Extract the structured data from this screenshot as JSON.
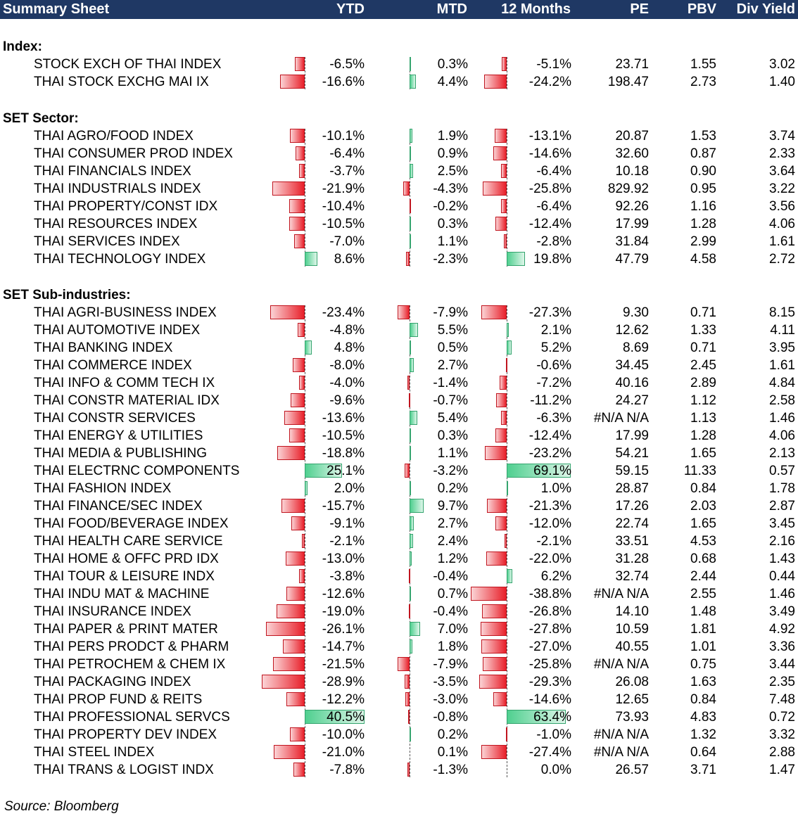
{
  "header": {
    "title": "Summary Sheet",
    "columns": [
      "YTD",
      "MTD",
      "12 Months",
      "PE",
      "PBV",
      "Div Yield"
    ]
  },
  "colors": {
    "header_bg": "#1f3864",
    "negative": "#e8202a",
    "positive": "#4fcf8f"
  },
  "sections": [
    {
      "title": "Index:",
      "rows": [
        {
          "name": "STOCK EXCH OF THAI INDEX",
          "ytd": -6.5,
          "mtd": 0.3,
          "m12": -5.1,
          "pe": "23.71",
          "pbv": "1.55",
          "dy": "3.02"
        },
        {
          "name": "THAI STOCK EXCHG MAI IX",
          "ytd": -16.6,
          "mtd": 4.4,
          "m12": -24.2,
          "pe": "198.47",
          "pbv": "2.73",
          "dy": "1.40"
        }
      ]
    },
    {
      "title": "SET Sector:",
      "rows": [
        {
          "name": "THAI AGRO/FOOD INDEX",
          "ytd": -10.1,
          "mtd": 1.9,
          "m12": -13.1,
          "pe": "20.87",
          "pbv": "1.53",
          "dy": "3.74"
        },
        {
          "name": "THAI CONSUMER PROD INDEX",
          "ytd": -6.4,
          "mtd": 0.9,
          "m12": -14.6,
          "pe": "32.60",
          "pbv": "0.87",
          "dy": "2.33"
        },
        {
          "name": "THAI FINANCIALS INDEX",
          "ytd": -3.7,
          "mtd": 2.5,
          "m12": -6.4,
          "pe": "10.18",
          "pbv": "0.90",
          "dy": "3.64"
        },
        {
          "name": "THAI INDUSTRIALS INDEX",
          "ytd": -21.9,
          "mtd": -4.3,
          "m12": -25.8,
          "pe": "829.92",
          "pbv": "0.95",
          "dy": "3.22"
        },
        {
          "name": "THAI PROPERTY/CONST IDX",
          "ytd": -10.4,
          "mtd": -0.2,
          "m12": -6.4,
          "pe": "92.26",
          "pbv": "1.16",
          "dy": "3.56"
        },
        {
          "name": "THAI RESOURCES INDEX",
          "ytd": -10.5,
          "mtd": 0.3,
          "m12": -12.4,
          "pe": "17.99",
          "pbv": "1.28",
          "dy": "4.06"
        },
        {
          "name": "THAI SERVICES INDEX",
          "ytd": -7.0,
          "mtd": 1.1,
          "m12": -2.8,
          "pe": "31.84",
          "pbv": "2.99",
          "dy": "1.61"
        },
        {
          "name": "THAI TECHNOLOGY INDEX",
          "ytd": 8.6,
          "mtd": -2.3,
          "m12": 19.8,
          "pe": "47.79",
          "pbv": "4.58",
          "dy": "2.72"
        }
      ]
    },
    {
      "title": "SET Sub-industries:",
      "rows": [
        {
          "name": "THAI AGRI-BUSINESS INDEX",
          "ytd": -23.4,
          "mtd": -7.9,
          "m12": -27.3,
          "pe": "9.30",
          "pbv": "0.71",
          "dy": "8.15"
        },
        {
          "name": "THAI AUTOMOTIVE INDEX",
          "ytd": -4.8,
          "mtd": 5.5,
          "m12": 2.1,
          "pe": "12.62",
          "pbv": "1.33",
          "dy": "4.11"
        },
        {
          "name": "THAI BANKING INDEX",
          "ytd": 4.8,
          "mtd": 0.5,
          "m12": 5.2,
          "pe": "8.69",
          "pbv": "0.71",
          "dy": "3.95"
        },
        {
          "name": "THAI COMMERCE INDEX",
          "ytd": -8.0,
          "mtd": 2.7,
          "m12": -0.6,
          "pe": "34.45",
          "pbv": "2.45",
          "dy": "1.61"
        },
        {
          "name": "THAI INFO & COMM TECH IX",
          "ytd": -4.0,
          "mtd": -1.4,
          "m12": -7.2,
          "pe": "40.16",
          "pbv": "2.89",
          "dy": "4.84"
        },
        {
          "name": "THAI CONSTR MATERIAL IDX",
          "ytd": -9.6,
          "mtd": -0.7,
          "m12": -11.2,
          "pe": "24.27",
          "pbv": "1.12",
          "dy": "2.58"
        },
        {
          "name": "THAI CONSTR SERVICES",
          "ytd": -13.6,
          "mtd": 5.4,
          "m12": -6.3,
          "pe": "#N/A N/A",
          "pbv": "1.13",
          "dy": "1.46"
        },
        {
          "name": "THAI ENERGY & UTILITIES",
          "ytd": -10.5,
          "mtd": 0.3,
          "m12": -12.4,
          "pe": "17.99",
          "pbv": "1.28",
          "dy": "4.06"
        },
        {
          "name": "THAI MEDIA & PUBLISHING",
          "ytd": -18.8,
          "mtd": 1.1,
          "m12": -23.2,
          "pe": "54.21",
          "pbv": "1.65",
          "dy": "2.13"
        },
        {
          "name": "THAI ELECTRNC COMPONENTS",
          "ytd": 25.1,
          "mtd": -3.2,
          "m12": 69.1,
          "pe": "59.15",
          "pbv": "11.33",
          "dy": "0.57"
        },
        {
          "name": "THAI FASHION INDEX",
          "ytd": 2.0,
          "mtd": 0.2,
          "m12": 1.0,
          "pe": "28.87",
          "pbv": "0.84",
          "dy": "1.78"
        },
        {
          "name": "THAI FINANCE/SEC INDEX",
          "ytd": -15.7,
          "mtd": 9.7,
          "m12": -21.3,
          "pe": "17.26",
          "pbv": "2.03",
          "dy": "2.87"
        },
        {
          "name": "THAI FOOD/BEVERAGE INDEX",
          "ytd": -9.1,
          "mtd": 2.7,
          "m12": -12.0,
          "pe": "22.74",
          "pbv": "1.65",
          "dy": "3.45"
        },
        {
          "name": "THAI HEALTH CARE SERVICE",
          "ytd": -2.1,
          "mtd": 2.4,
          "m12": -2.1,
          "pe": "33.51",
          "pbv": "4.53",
          "dy": "2.16"
        },
        {
          "name": "THAI HOME & OFFC PRD IDX",
          "ytd": -13.0,
          "mtd": 1.2,
          "m12": -22.0,
          "pe": "31.28",
          "pbv": "0.68",
          "dy": "1.43"
        },
        {
          "name": "THAI TOUR & LEISURE INDX",
          "ytd": -3.8,
          "mtd": -0.4,
          "m12": 6.2,
          "pe": "32.74",
          "pbv": "2.44",
          "dy": "0.44"
        },
        {
          "name": "THAI INDU MAT & MACHINE",
          "ytd": -12.6,
          "mtd": 0.7,
          "m12": -38.8,
          "pe": "#N/A N/A",
          "pbv": "2.55",
          "dy": "1.46"
        },
        {
          "name": "THAI INSURANCE INDEX",
          "ytd": -19.0,
          "mtd": -0.4,
          "m12": -26.8,
          "pe": "14.10",
          "pbv": "1.48",
          "dy": "3.49"
        },
        {
          "name": "THAI PAPER & PRINT MATER",
          "ytd": -26.1,
          "mtd": 7.0,
          "m12": -27.8,
          "pe": "10.59",
          "pbv": "1.81",
          "dy": "4.92"
        },
        {
          "name": "THAI PERS PRODCT & PHARM",
          "ytd": -14.7,
          "mtd": 1.8,
          "m12": -27.0,
          "pe": "40.55",
          "pbv": "1.01",
          "dy": "3.36"
        },
        {
          "name": "THAI PETROCHEM & CHEM IX",
          "ytd": -21.5,
          "mtd": -7.9,
          "m12": -25.8,
          "pe": "#N/A N/A",
          "pbv": "0.75",
          "dy": "3.44"
        },
        {
          "name": "THAI PACKAGING INDEX",
          "ytd": -28.9,
          "mtd": -3.5,
          "m12": -29.3,
          "pe": "26.08",
          "pbv": "1.63",
          "dy": "2.35"
        },
        {
          "name": "THAI PROP FUND & REITS",
          "ytd": -12.2,
          "mtd": -3.0,
          "m12": -14.6,
          "pe": "12.65",
          "pbv": "0.84",
          "dy": "7.48"
        },
        {
          "name": "THAI PROFESSIONAL SERVCS",
          "ytd": 40.5,
          "mtd": -0.8,
          "m12": 63.4,
          "pe": "73.93",
          "pbv": "4.83",
          "dy": "0.72"
        },
        {
          "name": "THAI PROPERTY DEV INDEX",
          "ytd": -10.0,
          "mtd": 0.2,
          "m12": -1.0,
          "pe": "#N/A N/A",
          "pbv": "1.32",
          "dy": "3.32"
        },
        {
          "name": "THAI STEEL INDEX",
          "ytd": -21.0,
          "mtd": 0.1,
          "m12": -27.4,
          "pe": "#N/A N/A",
          "pbv": "0.64",
          "dy": "2.88"
        },
        {
          "name": "THAI TRANS & LOGIST INDX",
          "ytd": -7.8,
          "mtd": -1.3,
          "m12": 0.0,
          "pe": "26.57",
          "pbv": "3.71",
          "dy": "1.47"
        }
      ]
    }
  ],
  "source": "Source: Bloomberg"
}
